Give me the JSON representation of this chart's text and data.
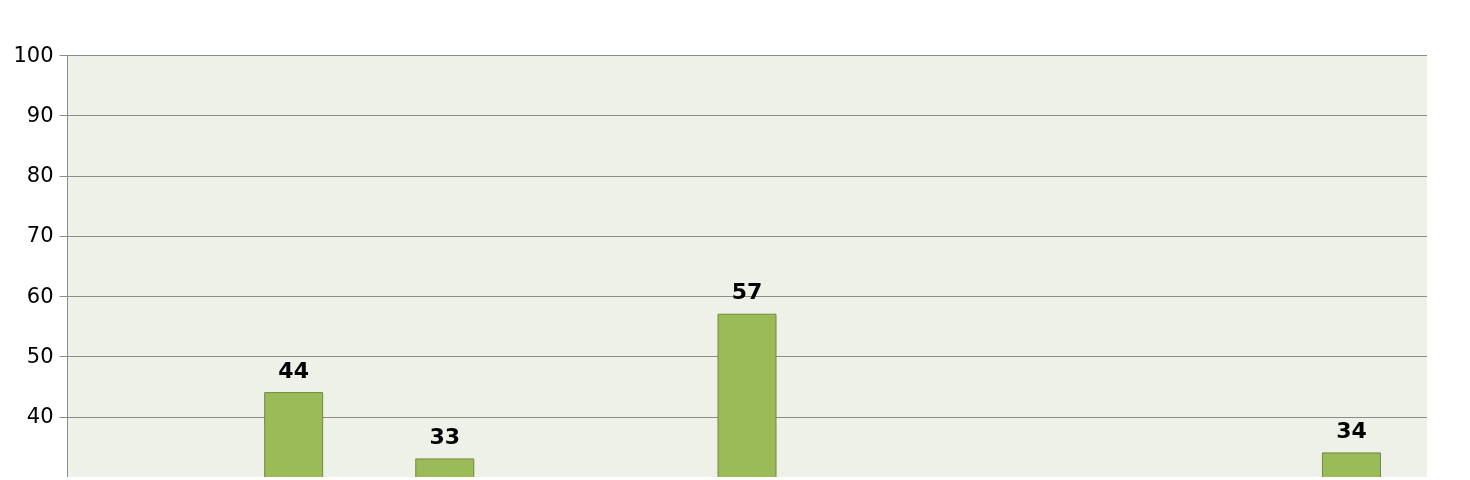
{
  "chart_data": {
    "type": "bar",
    "categories": [
      null,
      null,
      null,
      null,
      null,
      null,
      null,
      null,
      null
    ],
    "series": [
      {
        "color": "#9bbb59",
        "values": [
          null,
          44,
          33,
          null,
          57,
          null,
          null,
          null,
          34
        ]
      }
    ],
    "ylim": [
      30,
      100
    ],
    "yticks": [
      40,
      50,
      60,
      70,
      80,
      90,
      100
    ],
    "grid": "y",
    "data_labels": true,
    "legend": false
  }
}
